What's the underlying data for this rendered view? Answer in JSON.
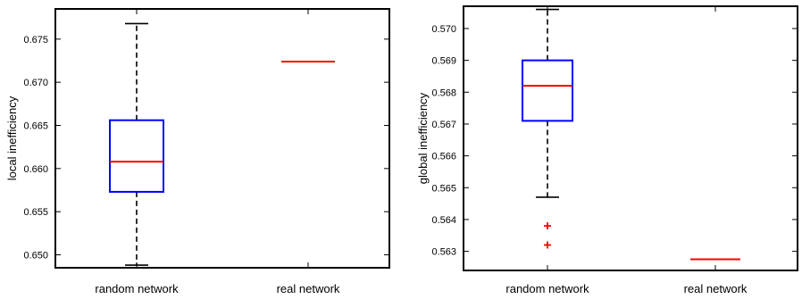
{
  "chart_data": [
    {
      "type": "box",
      "ylabel": "local inefficiency",
      "ylim": [
        0.6485,
        0.6785
      ],
      "yticks": [
        0.65,
        0.655,
        0.66,
        0.665,
        0.67,
        0.675
      ],
      "yticklabels": [
        "0.650",
        "0.655",
        "0.660",
        "0.665",
        "0.670",
        "0.675"
      ],
      "categories": [
        "random network",
        "real network"
      ],
      "boxes": [
        {
          "whisker_low": 0.6488,
          "q1": 0.6573,
          "median": 0.6608,
          "q3": 0.6656,
          "whisker_high": 0.6768,
          "outliers": []
        },
        {
          "whisker_low": 0.6724,
          "q1": 0.6724,
          "median": 0.6724,
          "q3": 0.6724,
          "whisker_high": 0.6724,
          "outliers": []
        }
      ],
      "colors": {
        "box": "#0000ff",
        "median": "#ff0000",
        "whisker": "#000000",
        "outlier": "#ff0000"
      }
    },
    {
      "type": "box",
      "ylabel": "global inefficiency",
      "ylim": [
        0.5624,
        0.5707
      ],
      "yticks": [
        0.563,
        0.564,
        0.565,
        0.566,
        0.567,
        0.568,
        0.569,
        0.57
      ],
      "yticklabels": [
        "0.563",
        "0.564",
        "0.565",
        "0.566",
        "0.567",
        "0.568",
        "0.569",
        "0.570"
      ],
      "categories": [
        "random network",
        "real network"
      ],
      "boxes": [
        {
          "whisker_low": 0.5647,
          "q1": 0.5671,
          "median": 0.5682,
          "q3": 0.569,
          "whisker_high": 0.5706,
          "outliers": [
            0.5638,
            0.5632
          ]
        },
        {
          "whisker_low": 0.56275,
          "q1": 0.56275,
          "median": 0.56275,
          "q3": 0.56275,
          "whisker_high": 0.56275,
          "outliers": []
        }
      ],
      "colors": {
        "box": "#0000ff",
        "median": "#ff0000",
        "whisker": "#000000",
        "outlier": "#ff0000"
      }
    }
  ]
}
